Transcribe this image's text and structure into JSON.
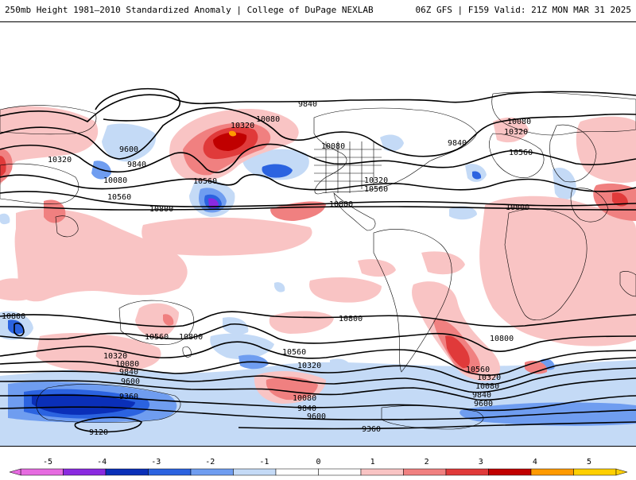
{
  "header": {
    "left_title": "250mb Height 1981—2010 Standardized Anomaly | College of DuPage NEXLAB",
    "right_title": "06Z GFS | F159 Valid: 21Z MON MAR 31 2025"
  },
  "contour_labels": {
    "north": [
      "9840",
      "10080",
      "10320",
      "9600",
      "9840",
      "10320",
      "10080",
      "10560",
      "10560",
      "10800",
      "10080",
      "9840",
      "10320",
      "10560",
      "10800",
      "10800",
      "10560",
      "10080",
      "10320",
      "10320",
      "10080",
      "10560",
      "10800"
    ],
    "south": [
      "10800",
      "10560",
      "10800",
      "10800",
      "10560",
      "10320",
      "10080",
      "9840",
      "9600",
      "9360",
      "9120",
      "10320",
      "10080",
      "9840",
      "9600",
      "10800",
      "10560",
      "10320",
      "10080",
      "9840",
      "9600",
      "9360"
    ]
  },
  "legend": {
    "ticks": [
      "-5",
      "-4",
      "-3",
      "-2",
      "-1",
      "0",
      "1",
      "2",
      "3",
      "4",
      "5"
    ],
    "colors": [
      "#e66be0",
      "#8a2ae0",
      "#0a2fb8",
      "#2b63e0",
      "#6f9df0",
      "#c4daf6",
      "#ffffff",
      "#ffffff",
      "#f9c4c4",
      "#f08080",
      "#e03a3a",
      "#c00000",
      "#ff9a00",
      "#ffd000"
    ]
  }
}
